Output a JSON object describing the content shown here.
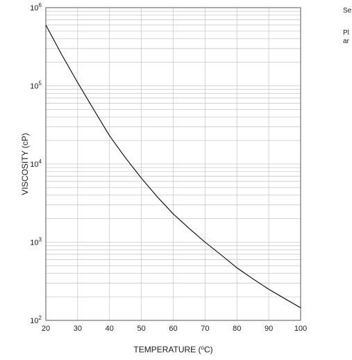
{
  "chart_data": {
    "type": "line",
    "xlabel": "TEMPERATURE (°C)",
    "xlabel_pre": "TEMPERATURE (",
    "xlabel_deg": "o",
    "xlabel_post": "C)",
    "ylabel": "VISCOSITY (cP)",
    "xlim": [
      20,
      100
    ],
    "ylim": [
      100,
      1000000
    ],
    "yscale": "log",
    "grid": true,
    "x_ticks": [
      "20",
      "30",
      "40",
      "50",
      "60",
      "70",
      "80",
      "90",
      "100"
    ],
    "y_ticks": [
      {
        "value": 100,
        "base": "10",
        "exp": "2"
      },
      {
        "value": 1000,
        "base": "10",
        "exp": "3"
      },
      {
        "value": 10000,
        "base": "10",
        "exp": "4"
      },
      {
        "value": 100000,
        "base": "10",
        "exp": "5"
      },
      {
        "value": 1000000,
        "base": "10",
        "exp": "6"
      }
    ],
    "series": [
      {
        "x": [
          20,
          25,
          30,
          35,
          40,
          45,
          50,
          55,
          60,
          65,
          70,
          75,
          80,
          85,
          90,
          95,
          100
        ],
        "y": [
          600000,
          250000,
          110000,
          50000,
          23000,
          12000,
          6600,
          3800,
          2300,
          1500,
          1000,
          690,
          470,
          340,
          250,
          190,
          145
        ]
      }
    ],
    "colors": {
      "line": "#000000",
      "grid": "#c8c8c8",
      "frame": "#555555"
    }
  },
  "side_text": {
    "line1": "Se",
    "line2": "Pl",
    "line3": "ar"
  }
}
